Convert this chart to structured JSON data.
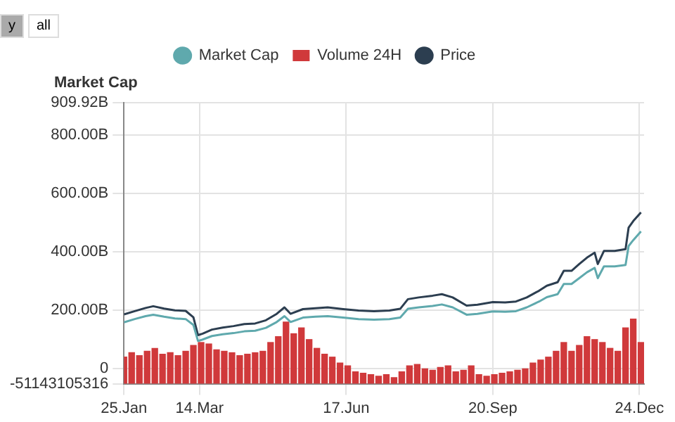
{
  "chart_data": {
    "type": "line",
    "ylabel": "Market Cap",
    "annotations": [
      "y",
      "all"
    ],
    "legend": "top",
    "grid": true,
    "xlim": [
      "--01-25",
      "--12-27"
    ],
    "xticks": [
      {
        "value": "--01-25",
        "label": "25.Jan"
      },
      {
        "value": "--03-14",
        "label": "14.Mar"
      },
      {
        "value": "--06-17",
        "label": "17.Jun"
      },
      {
        "value": "--09-20",
        "label": "20.Sep"
      },
      {
        "value": "--12-24",
        "label": "24.Dec"
      }
    ],
    "ylim": [
      -51143105316,
      909920000000
    ],
    "yticks": [
      -51143105316,
      0,
      {
        "value": 200000000000,
        "label": "200.00B"
      },
      {
        "value": 400000000000,
        "label": "400.00B"
      },
      {
        "value": 600000000000,
        "label": "600.00B"
      },
      {
        "value": 800000000000,
        "label": "800.00B"
      },
      {
        "value": 909920000000,
        "label": "909.92B"
      }
    ],
    "series": [
      {
        "name": "Market Cap",
        "color": "#5fa9ad",
        "x": [
          "--01-25",
          "--02-01",
          "--02-08",
          "--02-13",
          "--02-20",
          "--02-27",
          "--03-05",
          "--03-10",
          "--03-13",
          "--03-16",
          "--03-22",
          "--03-29",
          "--04-05",
          "--04-12",
          "--04-19",
          "--04-26",
          "--05-03",
          "--05-08",
          "--05-12",
          "--05-20",
          "--05-28",
          "--06-05",
          "--06-15",
          "--06-25",
          "--07-05",
          "--07-15",
          "--07-22",
          "--07-27",
          "--08-03",
          "--08-12",
          "--08-18",
          "--08-25",
          "--09-03",
          "--09-10",
          "--09-20",
          "--09-28",
          "--10-05",
          "--10-12",
          "--10-20",
          "--10-25",
          "--11-01",
          "--11-05",
          "--11-10",
          "--11-15",
          "--11-20",
          "--11-25",
          "--11-27",
          "--12-01",
          "--12-08",
          "--12-15",
          "--12-17",
          "--12-20",
          "--12-25"
        ],
        "values": [
          159000000000.0,
          170000000000.0,
          180000000000.0,
          185000000000.0,
          178000000000.0,
          172000000000.0,
          170000000000.0,
          150000000000.0,
          95000000000.0,
          100000000000.0,
          112000000000.0,
          118000000000.0,
          122000000000.0,
          128000000000.0,
          130000000000.0,
          140000000000.0,
          160000000000.0,
          180000000000.0,
          160000000000.0,
          175000000000.0,
          178000000000.0,
          180000000000.0,
          175000000000.0,
          170000000000.0,
          168000000000.0,
          170000000000.0,
          175000000000.0,
          205000000000.0,
          210000000000.0,
          215000000000.0,
          220000000000.0,
          210000000000.0,
          185000000000.0,
          188000000000.0,
          196000000000.0,
          195000000000.0,
          197000000000.0,
          210000000000.0,
          230000000000.0,
          245000000000.0,
          255000000000.0,
          290000000000.0,
          290000000000.0,
          310000000000.0,
          330000000000.0,
          345000000000.0,
          310000000000.0,
          350000000000.0,
          350000000000.0,
          355000000000.0,
          420000000000.0,
          440000000000.0,
          470000000000.0
        ]
      },
      {
        "name": "Volume 24H",
        "type": "bar",
        "color": "#d0393b",
        "x": [
          "--01-25",
          "--01-30",
          "--02-04",
          "--02-09",
          "--02-14",
          "--02-19",
          "--02-24",
          "--02-29",
          "--03-05",
          "--03-10",
          "--03-15",
          "--03-20",
          "--03-25",
          "--03-30",
          "--04-04",
          "--04-09",
          "--04-14",
          "--04-19",
          "--04-24",
          "--04-29",
          "--05-04",
          "--05-09",
          "--05-14",
          "--05-19",
          "--05-24",
          "--05-29",
          "--06-03",
          "--06-08",
          "--06-13",
          "--06-18",
          "--06-23",
          "--06-28",
          "--07-03",
          "--07-08",
          "--07-13",
          "--07-18",
          "--07-23",
          "--07-28",
          "--08-02",
          "--08-07",
          "--08-12",
          "--08-17",
          "--08-22",
          "--08-27",
          "--09-01",
          "--09-06",
          "--09-11",
          "--09-16",
          "--09-21",
          "--09-26",
          "--10-01",
          "--10-06",
          "--10-11",
          "--10-16",
          "--10-21",
          "--10-26",
          "--10-31",
          "--11-05",
          "--11-10",
          "--11-15",
          "--11-20",
          "--11-25",
          "--11-30",
          "--12-05",
          "--12-10",
          "--12-15",
          "--12-20",
          "--12-25"
        ],
        "base": [
          -51143105316,
          -51143105316,
          -51143105316,
          -51143105316,
          -51143105316,
          -51143105316,
          -51143105316,
          -51143105316,
          -51143105316,
          -51143105316,
          -51143105316,
          -51143105316,
          -51143105316,
          -51143105316,
          -51143105316,
          -51143105316,
          -51143105316,
          -51143105316,
          -51143105316,
          -51143105316,
          -51143105316,
          -51143105316,
          -51143105316,
          -51143105316,
          -51143105316,
          -51143105316,
          -51143105316,
          -51143105316,
          -51143105316,
          -51143105316,
          -51143105316,
          -51143105316,
          -51143105316,
          -51143105316,
          -51143105316,
          -51143105316,
          -51143105316,
          -51143105316,
          -51143105316,
          -51143105316,
          -51143105316,
          -51143105316,
          -51143105316,
          -51143105316,
          -51143105316,
          -51143105316,
          -51143105316,
          -51143105316,
          -51143105316,
          -51143105316,
          -51143105316,
          -51143105316,
          -51143105316,
          -51143105316,
          -51143105316,
          -51143105316,
          -51143105316,
          -51143105316,
          -51143105316,
          -51143105316,
          -51143105316,
          -51143105316,
          -51143105316,
          -51143105316,
          -51143105316,
          -51143105316,
          -51143105316,
          -51143105316
        ],
        "values": [
          91000000000.0,
          106000000000.0,
          96000000000.0,
          111000000000.0,
          121000000000.0,
          101000000000.0,
          106000000000.0,
          96000000000.0,
          111000000000.0,
          131000000000.0,
          141000000000.0,
          136000000000.0,
          116000000000.0,
          111000000000.0,
          106000000000.0,
          96000000000.0,
          101000000000.0,
          106000000000.0,
          111000000000.0,
          141000000000.0,
          161000000000.0,
          211000000000.0,
          171000000000.0,
          191000000000.0,
          151000000000.0,
          121000000000.0,
          101000000000.0,
          91000000000.0,
          71000000000.0,
          61000000000.0,
          41000000000.0,
          36000000000.0,
          31000000000.0,
          26000000000.0,
          31000000000.0,
          21000000000.0,
          41000000000.0,
          61000000000.0,
          66000000000.0,
          51000000000.0,
          46000000000.0,
          56000000000.0,
          61000000000.0,
          41000000000.0,
          46000000000.0,
          61000000000.0,
          31000000000.0,
          26000000000.0,
          31000000000.0,
          36000000000.0,
          41000000000.0,
          46000000000.0,
          51000000000.0,
          71000000000.0,
          81000000000.0,
          91000000000.0,
          111000000000.0,
          141000000000.0,
          111000000000.0,
          131000000000.0,
          161000000000.0,
          151000000000.0,
          141000000000.0,
          121000000000.0,
          111000000000.0,
          191000000000.0,
          221000000000.0,
          141000000000.0
        ]
      },
      {
        "name": "Price",
        "color": "#2c3e50",
        "x": [
          "--01-25",
          "--02-01",
          "--02-08",
          "--02-13",
          "--02-20",
          "--02-27",
          "--03-05",
          "--03-10",
          "--03-13",
          "--03-16",
          "--03-22",
          "--03-29",
          "--04-05",
          "--04-12",
          "--04-19",
          "--04-26",
          "--05-03",
          "--05-08",
          "--05-12",
          "--05-20",
          "--05-28",
          "--06-05",
          "--06-15",
          "--06-25",
          "--07-05",
          "--07-15",
          "--07-22",
          "--07-27",
          "--08-03",
          "--08-12",
          "--08-18",
          "--08-25",
          "--09-03",
          "--09-10",
          "--09-20",
          "--09-28",
          "--10-05",
          "--10-12",
          "--10-20",
          "--10-25",
          "--11-01",
          "--11-05",
          "--11-10",
          "--11-15",
          "--11-20",
          "--11-25",
          "--11-27",
          "--12-01",
          "--12-08",
          "--12-15",
          "--12-17",
          "--12-20",
          "--12-25"
        ],
        "values": [
          186000000000.0,
          197000000000.0,
          208000000000.0,
          214000000000.0,
          206000000000.0,
          200000000000.0,
          198000000000.0,
          176000000000.0,
          115000000000.0,
          120000000000.0,
          134000000000.0,
          141000000000.0,
          146000000000.0,
          153000000000.0,
          155000000000.0,
          166000000000.0,
          188000000000.0,
          210000000000.0,
          188000000000.0,
          204000000000.0,
          207000000000.0,
          210000000000.0,
          204000000000.0,
          199000000000.0,
          197000000000.0,
          199000000000.0,
          205000000000.0,
          238000000000.0,
          244000000000.0,
          250000000000.0,
          255000000000.0,
          244000000000.0,
          216000000000.0,
          219000000000.0,
          228000000000.0,
          227000000000.0,
          230000000000.0,
          244000000000.0,
          267000000000.0,
          284000000000.0,
          296000000000.0,
          335000000000.0,
          335000000000.0,
          358000000000.0,
          380000000000.0,
          397000000000.0,
          358000000000.0,
          403000000000.0,
          403000000000.0,
          409000000000.0,
          483000000000.0,
          505000000000.0,
          535000000000.0
        ]
      }
    ]
  }
}
